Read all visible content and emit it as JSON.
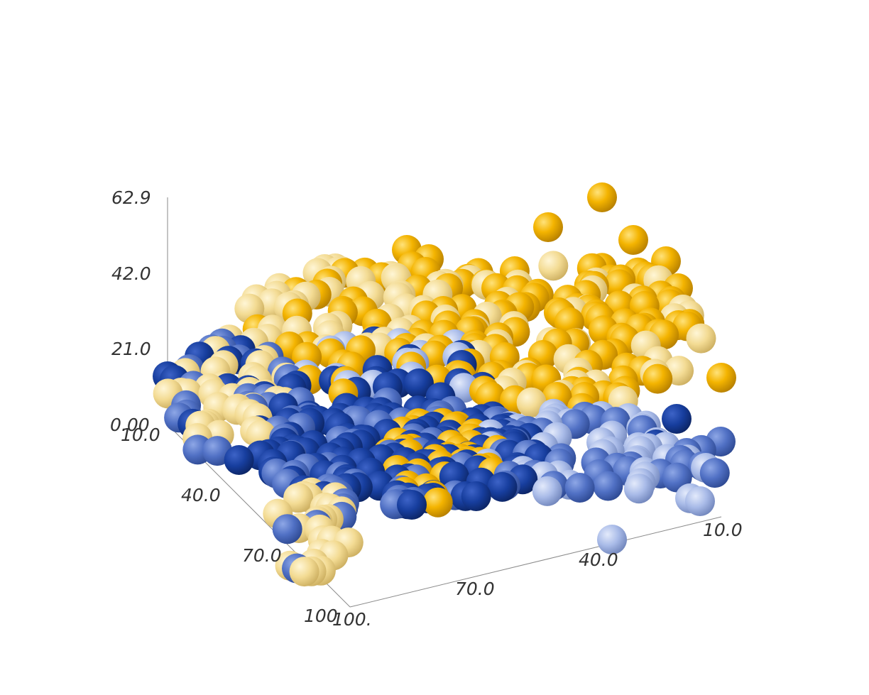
{
  "chart_data": {
    "type": "scatter",
    "subtype": "3d-voxel-spheres",
    "title": "",
    "axes": {
      "z": {
        "label": "",
        "range": [
          0,
          62.9
        ],
        "ticks": [
          "0.00",
          "21.0",
          "42.0",
          "62.9"
        ]
      },
      "left_depth": {
        "label": "",
        "range": [
          10,
          100
        ],
        "ticks": [
          "10.0",
          "40.0",
          "70.0",
          "100"
        ]
      },
      "right_depth": {
        "label": "",
        "range": [
          10,
          100
        ],
        "ticks": [
          "10.0",
          "40.0",
          "70.0",
          "100."
        ]
      }
    },
    "grid": false,
    "legend": "none",
    "colors": {
      "gold": "#f4b400",
      "pale_gold": "#f3db93",
      "dark_blue": "#173e9e",
      "mid_blue": "#5070c4",
      "light_blue": "#a9bbe8"
    }
  }
}
